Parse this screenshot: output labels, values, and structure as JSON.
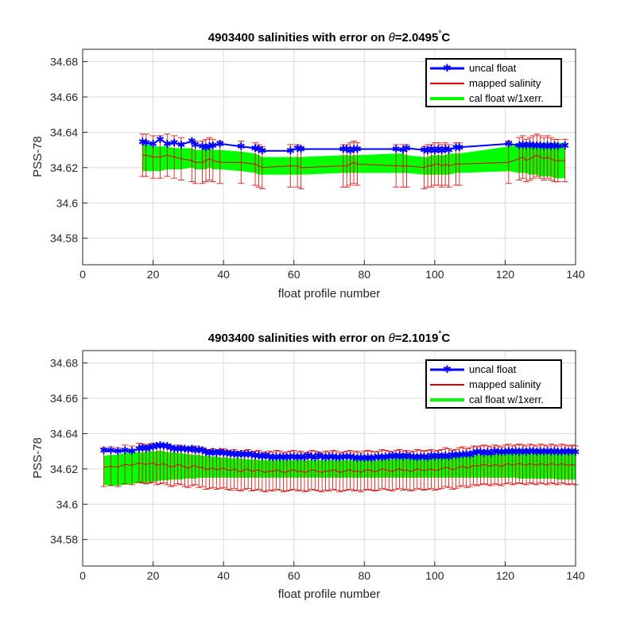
{
  "colors": {
    "uncal": "#0000ff",
    "mapped": "#dd0000",
    "band": "#00ff00",
    "grid": "#dadada",
    "axis": "#262626"
  },
  "chart_data": [
    {
      "type": "line",
      "title_prefix": "4903400 salinities with error on ",
      "title_theta": "θ",
      "title_value": "=2.0495",
      "title_degree": "°",
      "title_unit": "C",
      "xlabel": "float profile number",
      "ylabel": "PSS-78",
      "xlim": [
        0,
        140
      ],
      "ylim": [
        34.565,
        34.687
      ],
      "xticks": [
        "0",
        "20",
        "40",
        "60",
        "80",
        "100",
        "120",
        "140"
      ],
      "yticks": [
        "34.58",
        "34.6",
        "34.62",
        "34.64",
        "34.66",
        "34.68"
      ],
      "grid": true,
      "legend_position": "top-right",
      "legend": [
        "uncal float",
        "mapped salinity",
        "cal float w/1xerr."
      ],
      "x": [
        17,
        18,
        20,
        22,
        24,
        26,
        28,
        31,
        32,
        34,
        35,
        36,
        37,
        39,
        45,
        49,
        50,
        51,
        59,
        61,
        62,
        74,
        75,
        76,
        77,
        78,
        89,
        91,
        92,
        97,
        98,
        99,
        100,
        101,
        102,
        103,
        104,
        106,
        107,
        121,
        124,
        125,
        126,
        127,
        128,
        129,
        130,
        131,
        132,
        133,
        134,
        135,
        137
      ],
      "uncal_float": [
        34.6345,
        34.634,
        34.6335,
        34.636,
        34.6335,
        34.634,
        34.633,
        34.635,
        34.633,
        34.632,
        34.6315,
        34.632,
        34.6325,
        34.6335,
        34.632,
        34.631,
        34.6305,
        34.6295,
        34.6295,
        34.631,
        34.6305,
        34.6305,
        34.6305,
        34.6295,
        34.6305,
        34.6305,
        34.6305,
        34.63,
        34.631,
        34.63,
        34.6295,
        34.6305,
        34.6295,
        34.6305,
        34.6295,
        34.6305,
        34.63,
        34.6315,
        34.6315,
        34.6335,
        34.6325,
        34.633,
        34.6325,
        34.633,
        34.6325,
        34.6325,
        34.6325,
        34.632,
        34.6325,
        34.632,
        34.6325,
        34.632,
        34.6325
      ],
      "mapped_salinity": [
        34.627,
        34.627,
        34.626,
        34.626,
        34.627,
        34.626,
        34.625,
        34.624,
        34.623,
        34.623,
        34.624,
        34.625,
        34.624,
        34.623,
        34.623,
        34.622,
        34.621,
        34.62,
        34.621,
        34.621,
        34.62,
        34.621,
        34.621,
        34.622,
        34.623,
        34.622,
        34.621,
        34.621,
        34.621,
        34.62,
        34.621,
        34.621,
        34.622,
        34.622,
        34.621,
        34.622,
        34.621,
        34.622,
        34.622,
        34.623,
        34.625,
        34.626,
        34.624,
        34.625,
        34.626,
        34.627,
        34.626,
        34.625,
        34.626,
        34.625,
        34.624,
        34.624,
        34.624
      ],
      "mapped_error": 0.012,
      "band_upper": [
        34.633,
        34.633,
        34.632,
        34.632,
        34.632,
        34.631,
        34.631,
        34.631,
        34.63,
        34.63,
        34.631,
        34.631,
        34.63,
        34.63,
        34.629,
        34.628,
        34.627,
        34.626,
        34.626,
        34.626,
        34.626,
        34.627,
        34.627,
        34.627,
        34.627,
        34.627,
        34.628,
        34.628,
        34.627,
        34.626,
        34.626,
        34.627,
        34.627,
        34.627,
        34.627,
        34.627,
        34.628,
        34.628,
        34.628,
        34.632,
        34.633,
        34.633,
        34.633,
        34.633,
        34.633,
        34.633,
        34.634,
        34.634,
        34.634,
        34.634,
        34.634,
        34.634,
        34.634
      ],
      "band_lower": [
        34.618,
        34.618,
        34.618,
        34.618,
        34.619,
        34.619,
        34.619,
        34.62,
        34.619,
        34.619,
        34.619,
        34.62,
        34.619,
        34.619,
        34.618,
        34.617,
        34.616,
        34.616,
        34.616,
        34.616,
        34.616,
        34.617,
        34.617,
        34.617,
        34.617,
        34.617,
        34.617,
        34.617,
        34.617,
        34.616,
        34.616,
        34.616,
        34.616,
        34.616,
        34.616,
        34.616,
        34.616,
        34.617,
        34.617,
        34.618,
        34.617,
        34.617,
        34.617,
        34.616,
        34.616,
        34.616,
        34.615,
        34.615,
        34.615,
        34.615,
        34.614,
        34.614,
        34.614
      ]
    },
    {
      "type": "line",
      "title_prefix": "4903400 salinities with error on ",
      "title_theta": "θ",
      "title_value": "=2.1019",
      "title_degree": "°",
      "title_unit": "C",
      "xlabel": "float profile number",
      "ylabel": "PSS-78",
      "xlim": [
        0,
        140
      ],
      "ylim": [
        34.565,
        34.687
      ],
      "xticks": [
        "0",
        "20",
        "40",
        "60",
        "80",
        "100",
        "120",
        "140"
      ],
      "yticks": [
        "34.58",
        "34.6",
        "34.62",
        "34.64",
        "34.66",
        "34.68"
      ],
      "grid": true,
      "legend_position": "top-right",
      "legend": [
        "uncal float",
        "mapped salinity",
        "cal float w/1xerr."
      ],
      "x": [
        6,
        8,
        10,
        12,
        14,
        16,
        17,
        18,
        19,
        20,
        21,
        22,
        23,
        24,
        25,
        26,
        27,
        28,
        29,
        30,
        31,
        32,
        33,
        34,
        35,
        36,
        37,
        38,
        39,
        40,
        41,
        42,
        43,
        44,
        45,
        46,
        47,
        48,
        49,
        50,
        51,
        52,
        53,
        54,
        55,
        56,
        57,
        58,
        59,
        60,
        61,
        62,
        63,
        64,
        65,
        66,
        67,
        68,
        69,
        70,
        71,
        72,
        73,
        74,
        75,
        76,
        77,
        78,
        79,
        80,
        81,
        82,
        83,
        84,
        85,
        86,
        87,
        88,
        89,
        90,
        91,
        92,
        93,
        94,
        95,
        96,
        97,
        98,
        99,
        100,
        101,
        102,
        103,
        104,
        105,
        106,
        107,
        108,
        109,
        110,
        111,
        112,
        113,
        114,
        115,
        116,
        117,
        118,
        119,
        120,
        121,
        122,
        123,
        124,
        125,
        126,
        127,
        128,
        129,
        130,
        131,
        132,
        133,
        134,
        135,
        136,
        137,
        138,
        139,
        140
      ],
      "uncal_float": [
        34.6305,
        34.6305,
        34.63,
        34.6305,
        34.63,
        34.6315,
        34.632,
        34.6315,
        34.632,
        34.6325,
        34.633,
        34.6335,
        34.633,
        34.633,
        34.632,
        34.6315,
        34.6315,
        34.6315,
        34.6315,
        34.631,
        34.6315,
        34.6305,
        34.631,
        34.6305,
        34.6295,
        34.629,
        34.6295,
        34.629,
        34.6295,
        34.629,
        34.629,
        34.6285,
        34.6285,
        34.628,
        34.6285,
        34.628,
        34.6285,
        34.628,
        34.6275,
        34.6275,
        34.627,
        34.6275,
        34.627,
        34.6265,
        34.627,
        34.6265,
        34.627,
        34.6265,
        34.627,
        34.627,
        34.6265,
        34.627,
        34.6265,
        34.6275,
        34.627,
        34.6265,
        34.6275,
        34.627,
        34.6265,
        34.627,
        34.627,
        34.6265,
        34.6265,
        34.627,
        34.627,
        34.627,
        34.6265,
        34.626,
        34.6265,
        34.626,
        34.6265,
        34.626,
        34.6265,
        34.627,
        34.6265,
        34.627,
        34.627,
        34.6275,
        34.627,
        34.6275,
        34.627,
        34.6275,
        34.627,
        34.627,
        34.6265,
        34.627,
        34.627,
        34.6265,
        34.6275,
        34.627,
        34.6275,
        34.627,
        34.6275,
        34.627,
        34.628,
        34.6275,
        34.628,
        34.628,
        34.6285,
        34.628,
        34.629,
        34.6295,
        34.6295,
        34.629,
        34.6295,
        34.629,
        34.63,
        34.6295,
        34.6295,
        34.6295,
        34.63,
        34.6295,
        34.63,
        34.6295,
        34.63,
        34.6295,
        34.63,
        34.63,
        34.6295,
        34.63,
        34.6295,
        34.63,
        34.6295,
        34.63,
        34.6295,
        34.6295,
        34.63,
        34.6295,
        34.63,
        34.6295
      ],
      "mapped_salinity": [
        34.621,
        34.6215,
        34.621,
        34.6225,
        34.622,
        34.6235,
        34.623,
        34.6225,
        34.623,
        34.6235,
        34.622,
        34.6225,
        34.623,
        34.622,
        34.621,
        34.6215,
        34.6225,
        34.622,
        34.621,
        34.6205,
        34.6215,
        34.622,
        34.6205,
        34.621,
        34.6195,
        34.62,
        34.6205,
        34.6195,
        34.62,
        34.6205,
        34.6195,
        34.619,
        34.62,
        34.619,
        34.6185,
        34.6195,
        34.62,
        34.6185,
        34.619,
        34.6195,
        34.6185,
        34.618,
        34.619,
        34.6185,
        34.6195,
        34.619,
        34.618,
        34.6185,
        34.619,
        34.6195,
        34.6185,
        34.619,
        34.618,
        34.6185,
        34.6195,
        34.619,
        34.6185,
        34.618,
        34.619,
        34.6185,
        34.6195,
        34.619,
        34.618,
        34.6185,
        34.619,
        34.6195,
        34.6185,
        34.619,
        34.618,
        34.619,
        34.6195,
        34.619,
        34.6185,
        34.619,
        34.62,
        34.6195,
        34.619,
        34.6185,
        34.6195,
        34.62,
        34.619,
        34.6195,
        34.6185,
        34.619,
        34.62,
        34.6195,
        34.619,
        34.6195,
        34.62,
        34.619,
        34.6195,
        34.62,
        34.621,
        34.6205,
        34.6195,
        34.62,
        34.621,
        34.6215,
        34.6205,
        34.621,
        34.622,
        34.6215,
        34.622,
        34.6225,
        34.622,
        34.6215,
        34.6225,
        34.622,
        34.6215,
        34.6225,
        34.623,
        34.622,
        34.6225,
        34.623,
        34.6225,
        34.622,
        34.623,
        34.6225,
        34.622,
        34.623,
        34.6225,
        34.622,
        34.623,
        34.6225,
        34.622,
        34.623,
        34.6225,
        34.622,
        34.6225,
        34.622
      ],
      "mapped_error": 0.011,
      "band_upper": [
        34.6275,
        34.628,
        34.628,
        34.629,
        34.6295,
        34.6295,
        34.6295,
        34.6295,
        34.63,
        34.63,
        34.63,
        34.6305,
        34.63,
        34.6295,
        34.6295,
        34.6295,
        34.629,
        34.629,
        34.6285,
        34.6285,
        34.628,
        34.628,
        34.628,
        34.6275,
        34.6275,
        34.627,
        34.627,
        34.627,
        34.6265,
        34.6265,
        34.6265,
        34.626,
        34.626,
        34.626,
        34.626,
        34.6255,
        34.6255,
        34.6255,
        34.6255,
        34.625,
        34.625,
        34.625,
        34.625,
        34.625,
        34.625,
        34.625,
        34.625,
        34.625,
        34.625,
        34.625,
        34.625,
        34.625,
        34.625,
        34.625,
        34.625,
        34.625,
        34.625,
        34.625,
        34.625,
        34.625,
        34.625,
        34.625,
        34.625,
        34.625,
        34.625,
        34.625,
        34.625,
        34.625,
        34.625,
        34.625,
        34.625,
        34.625,
        34.625,
        34.625,
        34.6255,
        34.6255,
        34.6255,
        34.6255,
        34.6255,
        34.626,
        34.626,
        34.626,
        34.626,
        34.626,
        34.626,
        34.626,
        34.626,
        34.626,
        34.6265,
        34.6265,
        34.6265,
        34.6265,
        34.6265,
        34.6265,
        34.627,
        34.627,
        34.627,
        34.627,
        34.6275,
        34.6275,
        34.6275,
        34.628,
        34.628,
        34.628,
        34.6285,
        34.6285,
        34.6285,
        34.6285,
        34.629,
        34.629,
        34.629,
        34.629,
        34.629,
        34.629,
        34.6295,
        34.6295,
        34.6295,
        34.6295,
        34.6295,
        34.6295,
        34.6295,
        34.6295,
        34.6295,
        34.6295,
        34.6295,
        34.6295,
        34.6295,
        34.6295,
        34.6295,
        34.6295
      ],
      "band_lower": [
        34.611,
        34.6105,
        34.6105,
        34.611,
        34.6115,
        34.612,
        34.612,
        34.6125,
        34.6125,
        34.613,
        34.613,
        34.6135,
        34.6135,
        34.6135,
        34.614,
        34.614,
        34.614,
        34.614,
        34.6145,
        34.6145,
        34.6145,
        34.6145,
        34.615,
        34.615,
        34.615,
        34.615,
        34.615,
        34.615,
        34.615,
        34.615,
        34.615,
        34.615,
        34.615,
        34.615,
        34.615,
        34.615,
        34.615,
        34.615,
        34.615,
        34.615,
        34.615,
        34.615,
        34.615,
        34.615,
        34.615,
        34.615,
        34.615,
        34.615,
        34.615,
        34.615,
        34.615,
        34.615,
        34.615,
        34.615,
        34.615,
        34.615,
        34.615,
        34.615,
        34.615,
        34.615,
        34.615,
        34.615,
        34.615,
        34.615,
        34.615,
        34.615,
        34.615,
        34.615,
        34.615,
        34.615,
        34.615,
        34.615,
        34.615,
        34.615,
        34.615,
        34.615,
        34.615,
        34.615,
        34.615,
        34.615,
        34.615,
        34.615,
        34.615,
        34.615,
        34.615,
        34.615,
        34.615,
        34.615,
        34.615,
        34.615,
        34.615,
        34.615,
        34.615,
        34.615,
        34.615,
        34.615,
        34.615,
        34.615,
        34.615,
        34.615,
        34.615,
        34.615,
        34.615,
        34.615,
        34.615,
        34.615,
        34.615,
        34.615,
        34.615,
        34.615,
        34.615,
        34.615,
        34.615,
        34.6145,
        34.6145,
        34.6145,
        34.6145,
        34.6145,
        34.6145,
        34.6145,
        34.6145,
        34.6145,
        34.6145,
        34.6145,
        34.614,
        34.614,
        34.614,
        34.614,
        34.614,
        34.614
      ]
    }
  ]
}
